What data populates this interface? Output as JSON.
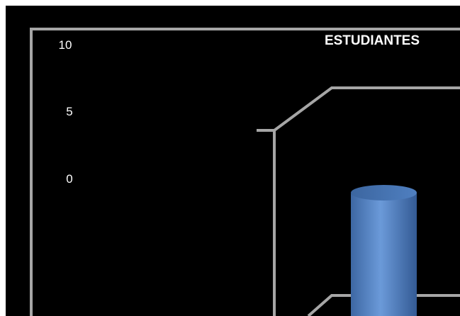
{
  "chart_data": {
    "type": "bar",
    "title": "ESTUDIANTES",
    "categories": [],
    "series": [
      {
        "values": []
      }
    ],
    "yticks": [
      "10",
      "5",
      "0"
    ],
    "ylim": [
      0,
      10
    ],
    "style": "3d-cylinder",
    "grid": false,
    "colors": {
      "background": "#000000",
      "frame": "#a6a6a6",
      "bar": "#4f81bd",
      "text": "#ffffff"
    }
  }
}
